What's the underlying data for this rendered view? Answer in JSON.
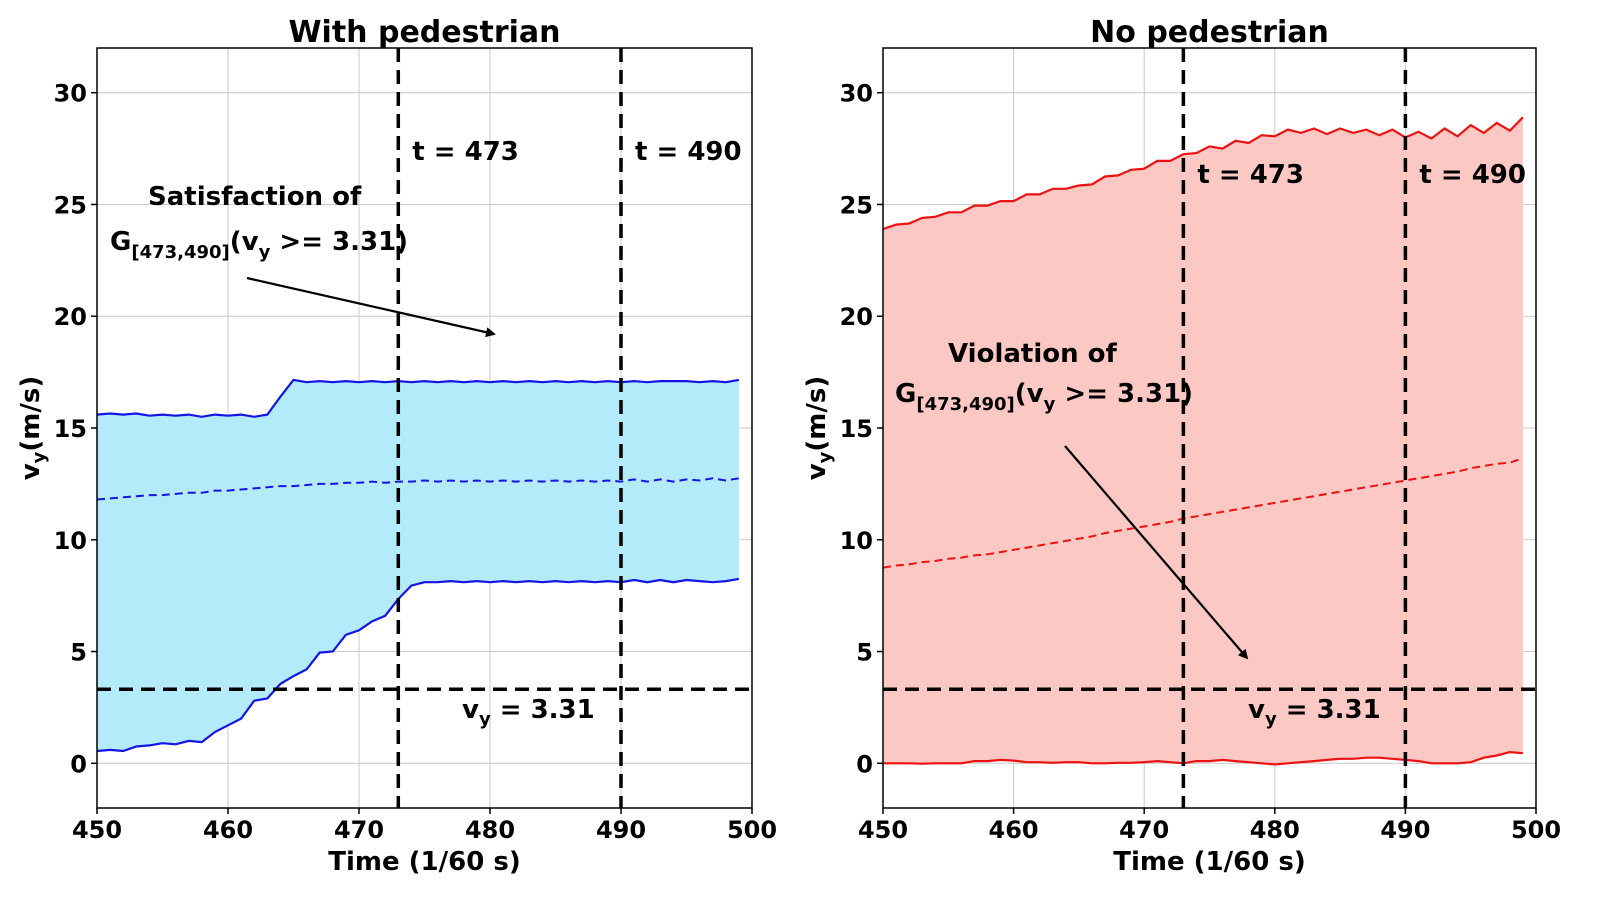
{
  "chart_data": [
    {
      "type": "line",
      "title": "With pedestrian",
      "xlabel": "Time (1/60 s)",
      "ylabel": "v_y(m/s)",
      "ylabel_main": "v",
      "ylabel_sub": "y",
      "ylabel_rest": "(m/s)",
      "xlim": [
        450,
        500
      ],
      "ylim": [
        -2,
        32
      ],
      "xticks": [
        450,
        460,
        470,
        480,
        490,
        500
      ],
      "yticks": [
        0,
        5,
        10,
        15,
        20,
        25,
        30
      ],
      "grid": true,
      "fill_color": "#b3ebfa",
      "line_color": "#1414e6",
      "x": [
        450,
        451,
        452,
        453,
        454,
        455,
        456,
        457,
        458,
        459,
        460,
        461,
        462,
        463,
        464,
        465,
        466,
        467,
        468,
        469,
        470,
        471,
        472,
        473,
        474,
        475,
        476,
        477,
        478,
        479,
        480,
        481,
        482,
        483,
        484,
        485,
        486,
        487,
        488,
        489,
        490,
        491,
        492,
        493,
        494,
        495,
        496,
        497,
        498,
        499
      ],
      "series": [
        {
          "name": "upper",
          "style": "solid",
          "values": [
            15.6,
            15.65,
            15.6,
            15.65,
            15.55,
            15.6,
            15.55,
            15.6,
            15.5,
            15.6,
            15.55,
            15.6,
            15.5,
            15.6,
            16.4,
            17.15,
            17.05,
            17.1,
            17.05,
            17.1,
            17.05,
            17.1,
            17.05,
            17.1,
            17.05,
            17.1,
            17.05,
            17.1,
            17.05,
            17.1,
            17.05,
            17.1,
            17.05,
            17.1,
            17.05,
            17.1,
            17.05,
            17.1,
            17.05,
            17.1,
            17.05,
            17.1,
            17.05,
            17.1,
            17.1,
            17.1,
            17.05,
            17.1,
            17.05,
            17.15
          ]
        },
        {
          "name": "mean",
          "style": "dashed",
          "values": [
            11.8,
            11.85,
            11.9,
            11.95,
            12.0,
            12.0,
            12.05,
            12.1,
            12.1,
            12.2,
            12.2,
            12.25,
            12.3,
            12.35,
            12.4,
            12.4,
            12.45,
            12.5,
            12.5,
            12.55,
            12.55,
            12.6,
            12.55,
            12.6,
            12.6,
            12.65,
            12.6,
            12.65,
            12.6,
            12.65,
            12.6,
            12.65,
            12.6,
            12.65,
            12.6,
            12.65,
            12.6,
            12.65,
            12.6,
            12.65,
            12.6,
            12.7,
            12.6,
            12.7,
            12.6,
            12.7,
            12.65,
            12.75,
            12.65,
            12.75
          ]
        },
        {
          "name": "lower",
          "style": "solid",
          "values": [
            0.55,
            0.6,
            0.55,
            0.75,
            0.8,
            0.9,
            0.85,
            1.0,
            0.95,
            1.4,
            1.7,
            2.0,
            2.8,
            2.9,
            3.55,
            3.9,
            4.2,
            4.95,
            5.0,
            5.75,
            5.95,
            6.35,
            6.6,
            7.35,
            7.95,
            8.1,
            8.1,
            8.15,
            8.1,
            8.15,
            8.1,
            8.15,
            8.1,
            8.15,
            8.1,
            8.15,
            8.1,
            8.15,
            8.1,
            8.15,
            8.1,
            8.2,
            8.1,
            8.2,
            8.1,
            8.2,
            8.15,
            8.1,
            8.15,
            8.25
          ]
        }
      ],
      "vlines": [
        {
          "x": 473,
          "label": "t = 473"
        },
        {
          "x": 490,
          "label": "t = 490"
        }
      ],
      "hline": {
        "y": 3.31,
        "label_main": "v",
        "label_sub": "y",
        "label_rest": " = 3.31"
      },
      "annotation": {
        "line1": "Satisfaction of",
        "formula_main": "G",
        "formula_sub": "[473,490]",
        "formula_rest_a": "(v",
        "formula_rest_sub": "y",
        "formula_rest_b": " >= 3.31)"
      }
    },
    {
      "type": "line",
      "title": "No pedestrian",
      "xlabel": "Time (1/60 s)",
      "ylabel": "v_y(m/s)",
      "ylabel_main": "v",
      "ylabel_sub": "y",
      "ylabel_rest": "(m/s)",
      "xlim": [
        450,
        500
      ],
      "ylim": [
        -2,
        32
      ],
      "xticks": [
        450,
        460,
        470,
        480,
        490,
        500
      ],
      "yticks": [
        0,
        5,
        10,
        15,
        20,
        25,
        30
      ],
      "grid": true,
      "fill_color": "#fcc8c4",
      "line_color": "#ee1111",
      "x": [
        450,
        451,
        452,
        453,
        454,
        455,
        456,
        457,
        458,
        459,
        460,
        461,
        462,
        463,
        464,
        465,
        466,
        467,
        468,
        469,
        470,
        471,
        472,
        473,
        474,
        475,
        476,
        477,
        478,
        479,
        480,
        481,
        482,
        483,
        484,
        485,
        486,
        487,
        488,
        489,
        490,
        491,
        492,
        493,
        494,
        495,
        496,
        497,
        498,
        499
      ],
      "series": [
        {
          "name": "upper",
          "style": "solid",
          "values": [
            23.9,
            24.1,
            24.15,
            24.4,
            24.45,
            24.65,
            24.65,
            24.95,
            24.95,
            25.15,
            25.15,
            25.45,
            25.45,
            25.7,
            25.7,
            25.85,
            25.9,
            26.25,
            26.3,
            26.55,
            26.6,
            26.95,
            26.95,
            27.25,
            27.3,
            27.6,
            27.5,
            27.85,
            27.75,
            28.1,
            28.05,
            28.35,
            28.2,
            28.4,
            28.15,
            28.4,
            28.2,
            28.35,
            28.1,
            28.35,
            28.0,
            28.25,
            27.95,
            28.4,
            28.05,
            28.55,
            28.2,
            28.65,
            28.3,
            28.9
          ]
        },
        {
          "name": "mean",
          "style": "dashed",
          "values": [
            8.75,
            8.85,
            8.9,
            9.0,
            9.05,
            9.15,
            9.2,
            9.3,
            9.35,
            9.45,
            9.55,
            9.65,
            9.75,
            9.85,
            9.95,
            10.05,
            10.15,
            10.3,
            10.4,
            10.5,
            10.6,
            10.7,
            10.8,
            10.95,
            11.05,
            11.15,
            11.25,
            11.35,
            11.45,
            11.55,
            11.65,
            11.75,
            11.85,
            11.95,
            12.05,
            12.15,
            12.25,
            12.35,
            12.45,
            12.55,
            12.65,
            12.75,
            12.85,
            12.95,
            13.05,
            13.2,
            13.3,
            13.4,
            13.45,
            13.65
          ]
        },
        {
          "name": "lower",
          "style": "solid",
          "values": [
            0.0,
            0.0,
            0.0,
            -0.02,
            0.0,
            0.0,
            0.0,
            0.1,
            0.1,
            0.15,
            0.12,
            0.05,
            0.05,
            0.02,
            0.05,
            0.05,
            0.0,
            0.0,
            0.02,
            0.02,
            0.05,
            0.1,
            0.05,
            0.0,
            0.1,
            0.1,
            0.15,
            0.1,
            0.05,
            0.0,
            -0.05,
            0.0,
            0.05,
            0.1,
            0.15,
            0.2,
            0.2,
            0.25,
            0.25,
            0.2,
            0.15,
            0.1,
            0.0,
            0.0,
            0.0,
            0.05,
            0.25,
            0.35,
            0.5,
            0.45
          ]
        }
      ],
      "vlines": [
        {
          "x": 473,
          "label": "t = 473"
        },
        {
          "x": 490,
          "label": "t = 490"
        }
      ],
      "hline": {
        "y": 3.31,
        "label_main": "v",
        "label_sub": "y",
        "label_rest": " = 3.31"
      },
      "annotation": {
        "line1": "Violation of",
        "formula_main": "G",
        "formula_sub": "[473,490]",
        "formula_rest_a": "(v",
        "formula_rest_sub": "y",
        "formula_rest_b": " >= 3.31)"
      }
    }
  ]
}
